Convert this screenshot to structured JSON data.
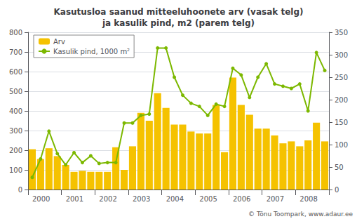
{
  "chart_data": {
    "type": "bar",
    "title": "Kasutusloa saanud mitteeluhoonete arv (vasak telg)\nja kasulik pind, m2 (parem telg)",
    "categories": [
      "2000",
      null,
      null,
      null,
      "2001",
      null,
      null,
      null,
      "2002",
      null,
      null,
      null,
      "2003",
      null,
      null,
      null,
      "2004",
      null,
      null,
      null,
      "2005",
      null,
      null,
      null,
      "2006",
      null,
      null,
      null,
      "2007",
      null,
      null,
      null,
      "2008",
      null,
      null,
      null
    ],
    "series": [
      {
        "name": "Arv",
        "type": "bar",
        "color": "#F5C200",
        "values": [
          205,
          155,
          210,
          170,
          125,
          90,
          95,
          90,
          90,
          90,
          215,
          100,
          220,
          390,
          350,
          490,
          415,
          330,
          330,
          295,
          285,
          285,
          430,
          190,
          570,
          430,
          380,
          310,
          310,
          275,
          235,
          245,
          220,
          250,
          340,
          245
        ]
      },
      {
        "name": "Kasulik pind, 1000 m²",
        "type": "line",
        "axis": "y2",
        "color": "#7CB800",
        "marker": "circle",
        "values": [
          27,
          68,
          130,
          80,
          55,
          82,
          60,
          75,
          58,
          60,
          60,
          148,
          148,
          165,
          168,
          315,
          315,
          250,
          210,
          192,
          185,
          165,
          190,
          185,
          270,
          255,
          205,
          250,
          280,
          235,
          230,
          225,
          235,
          175,
          305,
          265
        ]
      }
    ],
    "ylim": [
      0,
      800
    ],
    "yticks": [
      0,
      100,
      200,
      300,
      400,
      500,
      600,
      700,
      800
    ],
    "y2lim": [
      0,
      350
    ],
    "y2ticks": [
      0,
      50,
      100,
      150,
      200,
      250,
      300,
      350
    ],
    "grid": true,
    "legend": "upper left",
    "annotations": [
      "© Tõnu Toompark, www.adaur.ee"
    ]
  }
}
